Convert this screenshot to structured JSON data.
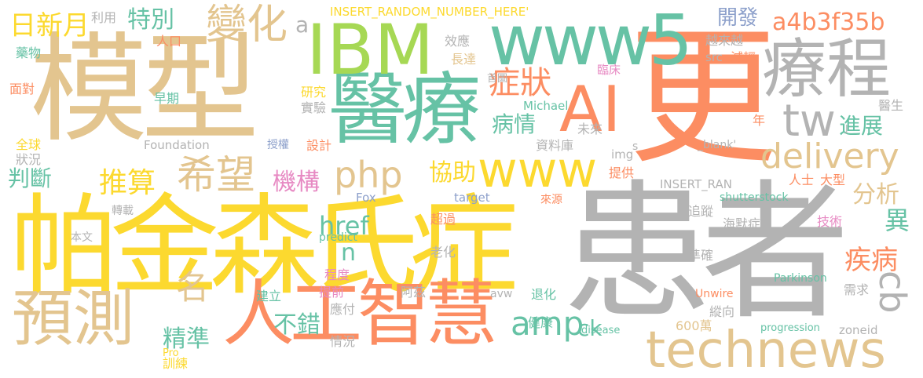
{
  "palette": {
    "tan": "#e3c58f",
    "gray": "#b3b3b3",
    "yellow": "#fcd92f",
    "orange": "#fc8d62",
    "green": "#66c2a5",
    "lime": "#a6d854",
    "pink": "#e78ac3",
    "blue": "#8da0cb"
  },
  "words": [
    {
      "text": "模型",
      "color": "tan"
    },
    {
      "text": "患者",
      "color": "gray"
    },
    {
      "text": "帕金森氏症",
      "color": "yellow"
    },
    {
      "text": "更",
      "color": "orange"
    },
    {
      "text": "醫療",
      "color": "green"
    },
    {
      "text": "人工智慧",
      "color": "orange"
    },
    {
      "text": "IBM",
      "color": "lime"
    },
    {
      "text": "www5",
      "color": "green"
    },
    {
      "text": "療程",
      "color": "gray"
    },
    {
      "text": "AI",
      "color": "orange"
    },
    {
      "text": "預測",
      "color": "tan"
    },
    {
      "text": "www",
      "color": "yellow"
    },
    {
      "text": "technews",
      "color": "tan"
    },
    {
      "text": "tw",
      "color": "gray"
    },
    {
      "text": "delivery",
      "color": "tan"
    },
    {
      "text": "變化",
      "color": "tan"
    },
    {
      "text": "a4b3f35b",
      "color": "orange"
    },
    {
      "text": "希望",
      "color": "tan"
    },
    {
      "text": "php",
      "color": "tan"
    },
    {
      "text": "推算",
      "color": "yellow"
    },
    {
      "text": "amp",
      "color": "green"
    },
    {
      "text": "ck",
      "color": "green"
    },
    {
      "text": "cb",
      "color": "gray"
    },
    {
      "text": "日新月",
      "color": "yellow"
    },
    {
      "text": "特別",
      "color": "green"
    },
    {
      "text": "症狀",
      "color": "orange"
    },
    {
      "text": "開發",
      "color": "blue"
    },
    {
      "text": "機構",
      "color": "pink"
    },
    {
      "text": "協助",
      "color": "yellow"
    },
    {
      "text": "病情",
      "color": "green"
    },
    {
      "text": "進展",
      "color": "green"
    },
    {
      "text": "分析",
      "color": "tan"
    },
    {
      "text": "疾病",
      "color": "orange"
    },
    {
      "text": "判斷",
      "color": "green"
    },
    {
      "text": "href",
      "color": "green"
    },
    {
      "text": "名",
      "color": "tan"
    },
    {
      "text": "不錯",
      "color": "green"
    },
    {
      "text": "精準",
      "color": "green"
    },
    {
      "text": "異",
      "color": "green"
    },
    {
      "text": "n",
      "color": "green"
    },
    {
      "text": "a",
      "color": "gray"
    },
    {
      "text": "INSERT_RANDOM_NUMBER_HERE'",
      "color": "yellow"
    },
    {
      "text": "利用",
      "color": "gray"
    },
    {
      "text": "人口",
      "color": "orange"
    },
    {
      "text": "藥物",
      "color": "green"
    },
    {
      "text": "面對",
      "color": "orange"
    },
    {
      "text": "早期",
      "color": "green"
    },
    {
      "text": "研究",
      "color": "yellow"
    },
    {
      "text": "實驗",
      "color": "gray"
    },
    {
      "text": "全球",
      "color": "yellow"
    },
    {
      "text": "狀況",
      "color": "gray"
    },
    {
      "text": "Foundation",
      "color": "gray"
    },
    {
      "text": "授權",
      "color": "blue"
    },
    {
      "text": "設計",
      "color": "orange"
    },
    {
      "text": "效應",
      "color": "gray"
    },
    {
      "text": "長達",
      "color": "tan"
    },
    {
      "text": "src",
      "color": "gray"
    },
    {
      "text": "越來越",
      "color": "gray"
    },
    {
      "text": "減輕",
      "color": "orange"
    },
    {
      "text": "臨床",
      "color": "pink"
    },
    {
      "text": "首圖",
      "color": "gray"
    },
    {
      "text": "Michael",
      "color": "green"
    },
    {
      "text": "資料庫",
      "color": "gray"
    },
    {
      "text": "未來",
      "color": "gray"
    },
    {
      "text": "img",
      "color": "gray"
    },
    {
      "text": "提供",
      "color": "orange"
    },
    {
      "text": "年",
      "color": "orange"
    },
    {
      "text": "醫生",
      "color": "gray"
    },
    {
      "text": "_blank'",
      "color": "gray"
    },
    {
      "text": "s",
      "color": "gray"
    },
    {
      "text": "J",
      "color": "gray"
    },
    {
      "text": "INSERT_RAN",
      "color": "gray"
    },
    {
      "text": "人士",
      "color": "orange"
    },
    {
      "text": "大型",
      "color": "orange"
    },
    {
      "text": "Fox",
      "color": "blue"
    },
    {
      "text": "target",
      "color": "blue"
    },
    {
      "text": "來源",
      "color": "orange"
    },
    {
      "text": "shutterstock",
      "color": "green"
    },
    {
      "text": "轉載",
      "color": "gray"
    },
    {
      "text": "超過",
      "color": "orange"
    },
    {
      "text": "追蹤",
      "color": "gray"
    },
    {
      "text": "海默症",
      "color": "gray"
    },
    {
      "text": "技術",
      "color": "pink"
    },
    {
      "text": "本文",
      "color": "gray"
    },
    {
      "text": "predict",
      "color": "green"
    },
    {
      "text": "老化",
      "color": "gray"
    },
    {
      "text": "準確",
      "color": "gray"
    },
    {
      "text": "程度",
      "color": "pink"
    },
    {
      "text": "Parkinson",
      "color": "green"
    },
    {
      "text": "建立",
      "color": "green"
    },
    {
      "text": "提前",
      "color": "pink"
    },
    {
      "text": "阿茲",
      "color": "gray"
    },
    {
      "text": "avw",
      "color": "gray"
    },
    {
      "text": "退化",
      "color": "green"
    },
    {
      "text": "需求",
      "color": "gray"
    },
    {
      "text": "應付",
      "color": "gray"
    },
    {
      "text": "Unwire",
      "color": "orange"
    },
    {
      "text": "縱向",
      "color": "gray"
    },
    {
      "text": "Pro",
      "color": "yellow"
    },
    {
      "text": "情況",
      "color": "gray"
    },
    {
      "text": "健康",
      "color": "green"
    },
    {
      "text": "disease",
      "color": "green"
    },
    {
      "text": "600萬",
      "color": "tan"
    },
    {
      "text": "progression",
      "color": "green"
    },
    {
      "text": "zoneid",
      "color": "gray"
    },
    {
      "text": "訓練",
      "color": "yellow"
    }
  ]
}
